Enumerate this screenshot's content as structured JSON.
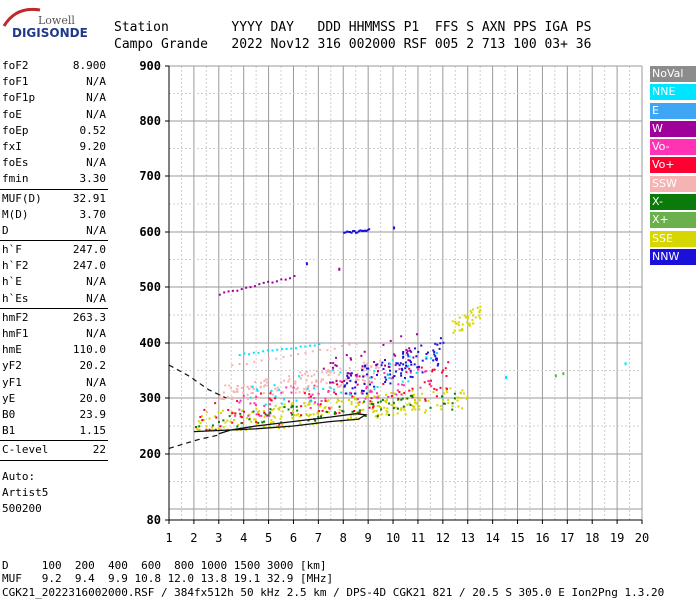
{
  "logo": {
    "line1": "Lowell",
    "line2": "DIGISONDE"
  },
  "header": {
    "row1": "Station        YYYY DAY   DDD HHMMSS P1  FFS S AXN PPS IGA PS",
    "row2": "Campo Grande   2022 Nov12 316 002000 RSF 005 2 713 100 03+ 36"
  },
  "params": {
    "group1": [
      {
        "name": "foF2",
        "value": "8.900"
      },
      {
        "name": "foF1",
        "value": "N/A"
      },
      {
        "name": "foF1p",
        "value": "N/A"
      },
      {
        "name": "foE",
        "value": "N/A"
      },
      {
        "name": "foEp",
        "value": "0.52"
      },
      {
        "name": "fxI",
        "value": "9.20"
      },
      {
        "name": "foEs",
        "value": "N/A"
      },
      {
        "name": "fmin",
        "value": "3.30"
      }
    ],
    "group2": [
      {
        "name": "MUF(D)",
        "value": "32.91"
      },
      {
        "name": "M(D)",
        "value": "3.70"
      },
      {
        "name": "D",
        "value": "N/A"
      }
    ],
    "group3": [
      {
        "name": "h`F",
        "value": "247.0"
      },
      {
        "name": "h`F2",
        "value": "247.0"
      },
      {
        "name": "h`E",
        "value": "N/A"
      },
      {
        "name": "h`Es",
        "value": "N/A"
      }
    ],
    "group4": [
      {
        "name": "hmF2",
        "value": "263.3"
      },
      {
        "name": "hmF1",
        "value": "N/A"
      },
      {
        "name": "hmE",
        "value": "110.0"
      },
      {
        "name": "yF2",
        "value": "20.2"
      },
      {
        "name": "yF1",
        "value": "N/A"
      },
      {
        "name": "yE",
        "value": "20.0"
      },
      {
        "name": "B0",
        "value": "23.9"
      },
      {
        "name": "B1",
        "value": "1.15"
      }
    ],
    "group5": [
      {
        "name": "C-level",
        "value": "22"
      }
    ],
    "auto": [
      "Auto:",
      "Artist5",
      "500200"
    ]
  },
  "legend": [
    {
      "label": "NoVal",
      "color": "#8c8c8c"
    },
    {
      "label": "NNE",
      "color": "#00e5ff"
    },
    {
      "label": "E",
      "color": "#3ea6f5"
    },
    {
      "label": "W",
      "color": "#a0009a"
    },
    {
      "label": "Vo-",
      "color": "#ff33b4"
    },
    {
      "label": "Vo+",
      "color": "#ff0030"
    },
    {
      "label": "SSW",
      "color": "#f6b3b3"
    },
    {
      "label": "X-",
      "color": "#0a7a0a"
    },
    {
      "label": "X+",
      "color": "#6ab04c"
    },
    {
      "label": "SSE",
      "color": "#d6d600"
    },
    {
      "label": "NNW",
      "color": "#1a10d8"
    }
  ],
  "footer": {
    "line1": "D     100  200  400  600  800 1000 1500 3000 [km]",
    "line2": "MUF   9.2  9.4  9.9 10.8 12.0 13.8 19.1 32.9 [MHz]",
    "line3": "CGK21_2022316002000.RSF / 384fx512h 50 kHz 2.5 km / DPS-4D CGK21 821 / 20.5 S 305.0 E Ion2Png 1.3.20"
  },
  "chart_data": {
    "type": "scatter",
    "title": "",
    "xlabel": "",
    "ylabel": "",
    "xlim": [
      1,
      20
    ],
    "ylim": [
      80,
      900
    ],
    "xticks": [
      1,
      2,
      3,
      4,
      5,
      6,
      7,
      8,
      9,
      10,
      11,
      12,
      13,
      14,
      15,
      16,
      17,
      18,
      19,
      20
    ],
    "yticks": [
      80,
      200,
      300,
      400,
      500,
      600,
      700,
      800,
      900
    ],
    "grid": true,
    "legend_position": "right",
    "clusters": [
      {
        "name": "SSE",
        "x": [
          2.0,
          13.0
        ],
        "y": [
          245,
          330
        ],
        "n": 260,
        "color": "#d6d600"
      },
      {
        "name": "SSW",
        "x": [
          3.0,
          9.5
        ],
        "y": [
          300,
          375
        ],
        "n": 160,
        "color": "#f6b3b3"
      },
      {
        "name": "NNW",
        "x": [
          8.0,
          12.0
        ],
        "y": [
          310,
          420
        ],
        "n": 110,
        "color": "#1a10d8"
      },
      {
        "name": "Vo+",
        "x": [
          2.0,
          12.5
        ],
        "y": [
          245,
          380
        ],
        "n": 90,
        "color": "#ff0030"
      },
      {
        "name": "Vo-",
        "x": [
          3.5,
          11.5
        ],
        "y": [
          270,
          370
        ],
        "n": 70,
        "color": "#ff33b4"
      },
      {
        "name": "X-",
        "x": [
          2.0,
          12.5
        ],
        "y": [
          250,
          320
        ],
        "n": 70,
        "color": "#0a7a0a"
      },
      {
        "name": "W",
        "x": [
          7.0,
          11.0
        ],
        "y": [
          330,
          430
        ],
        "n": 40,
        "color": "#a0009a"
      },
      {
        "name": "NNE",
        "x": [
          4.0,
          12.0
        ],
        "y": [
          290,
          395
        ],
        "n": 40,
        "color": "#00e5ff"
      },
      {
        "name": "SSE",
        "x": [
          12.3,
          13.5
        ],
        "y": [
          420,
          475
        ],
        "n": 40,
        "color": "#d6d600"
      }
    ],
    "traces": [
      {
        "name": "NNE",
        "x": [
          3.8,
          7.0
        ],
        "y": [
          380,
          400
        ],
        "color": "#00e5ff"
      },
      {
        "name": "W",
        "x": [
          3.0,
          6.0
        ],
        "y": [
          490,
          520
        ],
        "color": "#a0009a"
      },
      {
        "name": "NNW",
        "x": [
          8.0,
          9.0
        ],
        "y": [
          600,
          605
        ],
        "color": "#1a10d8"
      },
      {
        "name": "SSW",
        "x": [
          3.5,
          8.5
        ],
        "y": [
          360,
          400
        ],
        "color": "#f6b3b3"
      }
    ],
    "points": [
      {
        "name": "NNE",
        "x": 19.3,
        "y": 365,
        "color": "#00e5ff"
      },
      {
        "name": "NNE",
        "x": 14.5,
        "y": 340,
        "color": "#00e5ff"
      },
      {
        "name": "X+",
        "x": 16.5,
        "y": 343,
        "color": "#6ab04c"
      },
      {
        "name": "X+",
        "x": 16.8,
        "y": 347,
        "color": "#6ab04c"
      },
      {
        "name": "NNW",
        "x": 10.0,
        "y": 610,
        "color": "#1a10d8"
      },
      {
        "name": "NNW",
        "x": 6.5,
        "y": 545,
        "color": "#1a10d8"
      },
      {
        "name": "W",
        "x": 7.8,
        "y": 535,
        "color": "#a0009a"
      }
    ],
    "profile_solid": {
      "x": [
        2.0,
        3.0,
        4.5,
        6.0,
        7.5,
        8.6,
        8.9,
        8.5,
        7.5,
        6.0,
        4.5,
        3.5,
        3.0
      ],
      "y": [
        240,
        242,
        245,
        250,
        258,
        262,
        270,
        272,
        266,
        258,
        250,
        243,
        236
      ]
    },
    "profile_dashed": [
      {
        "x": [
          1.0,
          1.8,
          2.6,
          3.3
        ],
        "y": [
          360,
          340,
          315,
          300
        ]
      },
      {
        "x": [
          1.0,
          1.6,
          2.2,
          3.0
        ],
        "y": [
          210,
          218,
          226,
          234
        ]
      }
    ]
  }
}
